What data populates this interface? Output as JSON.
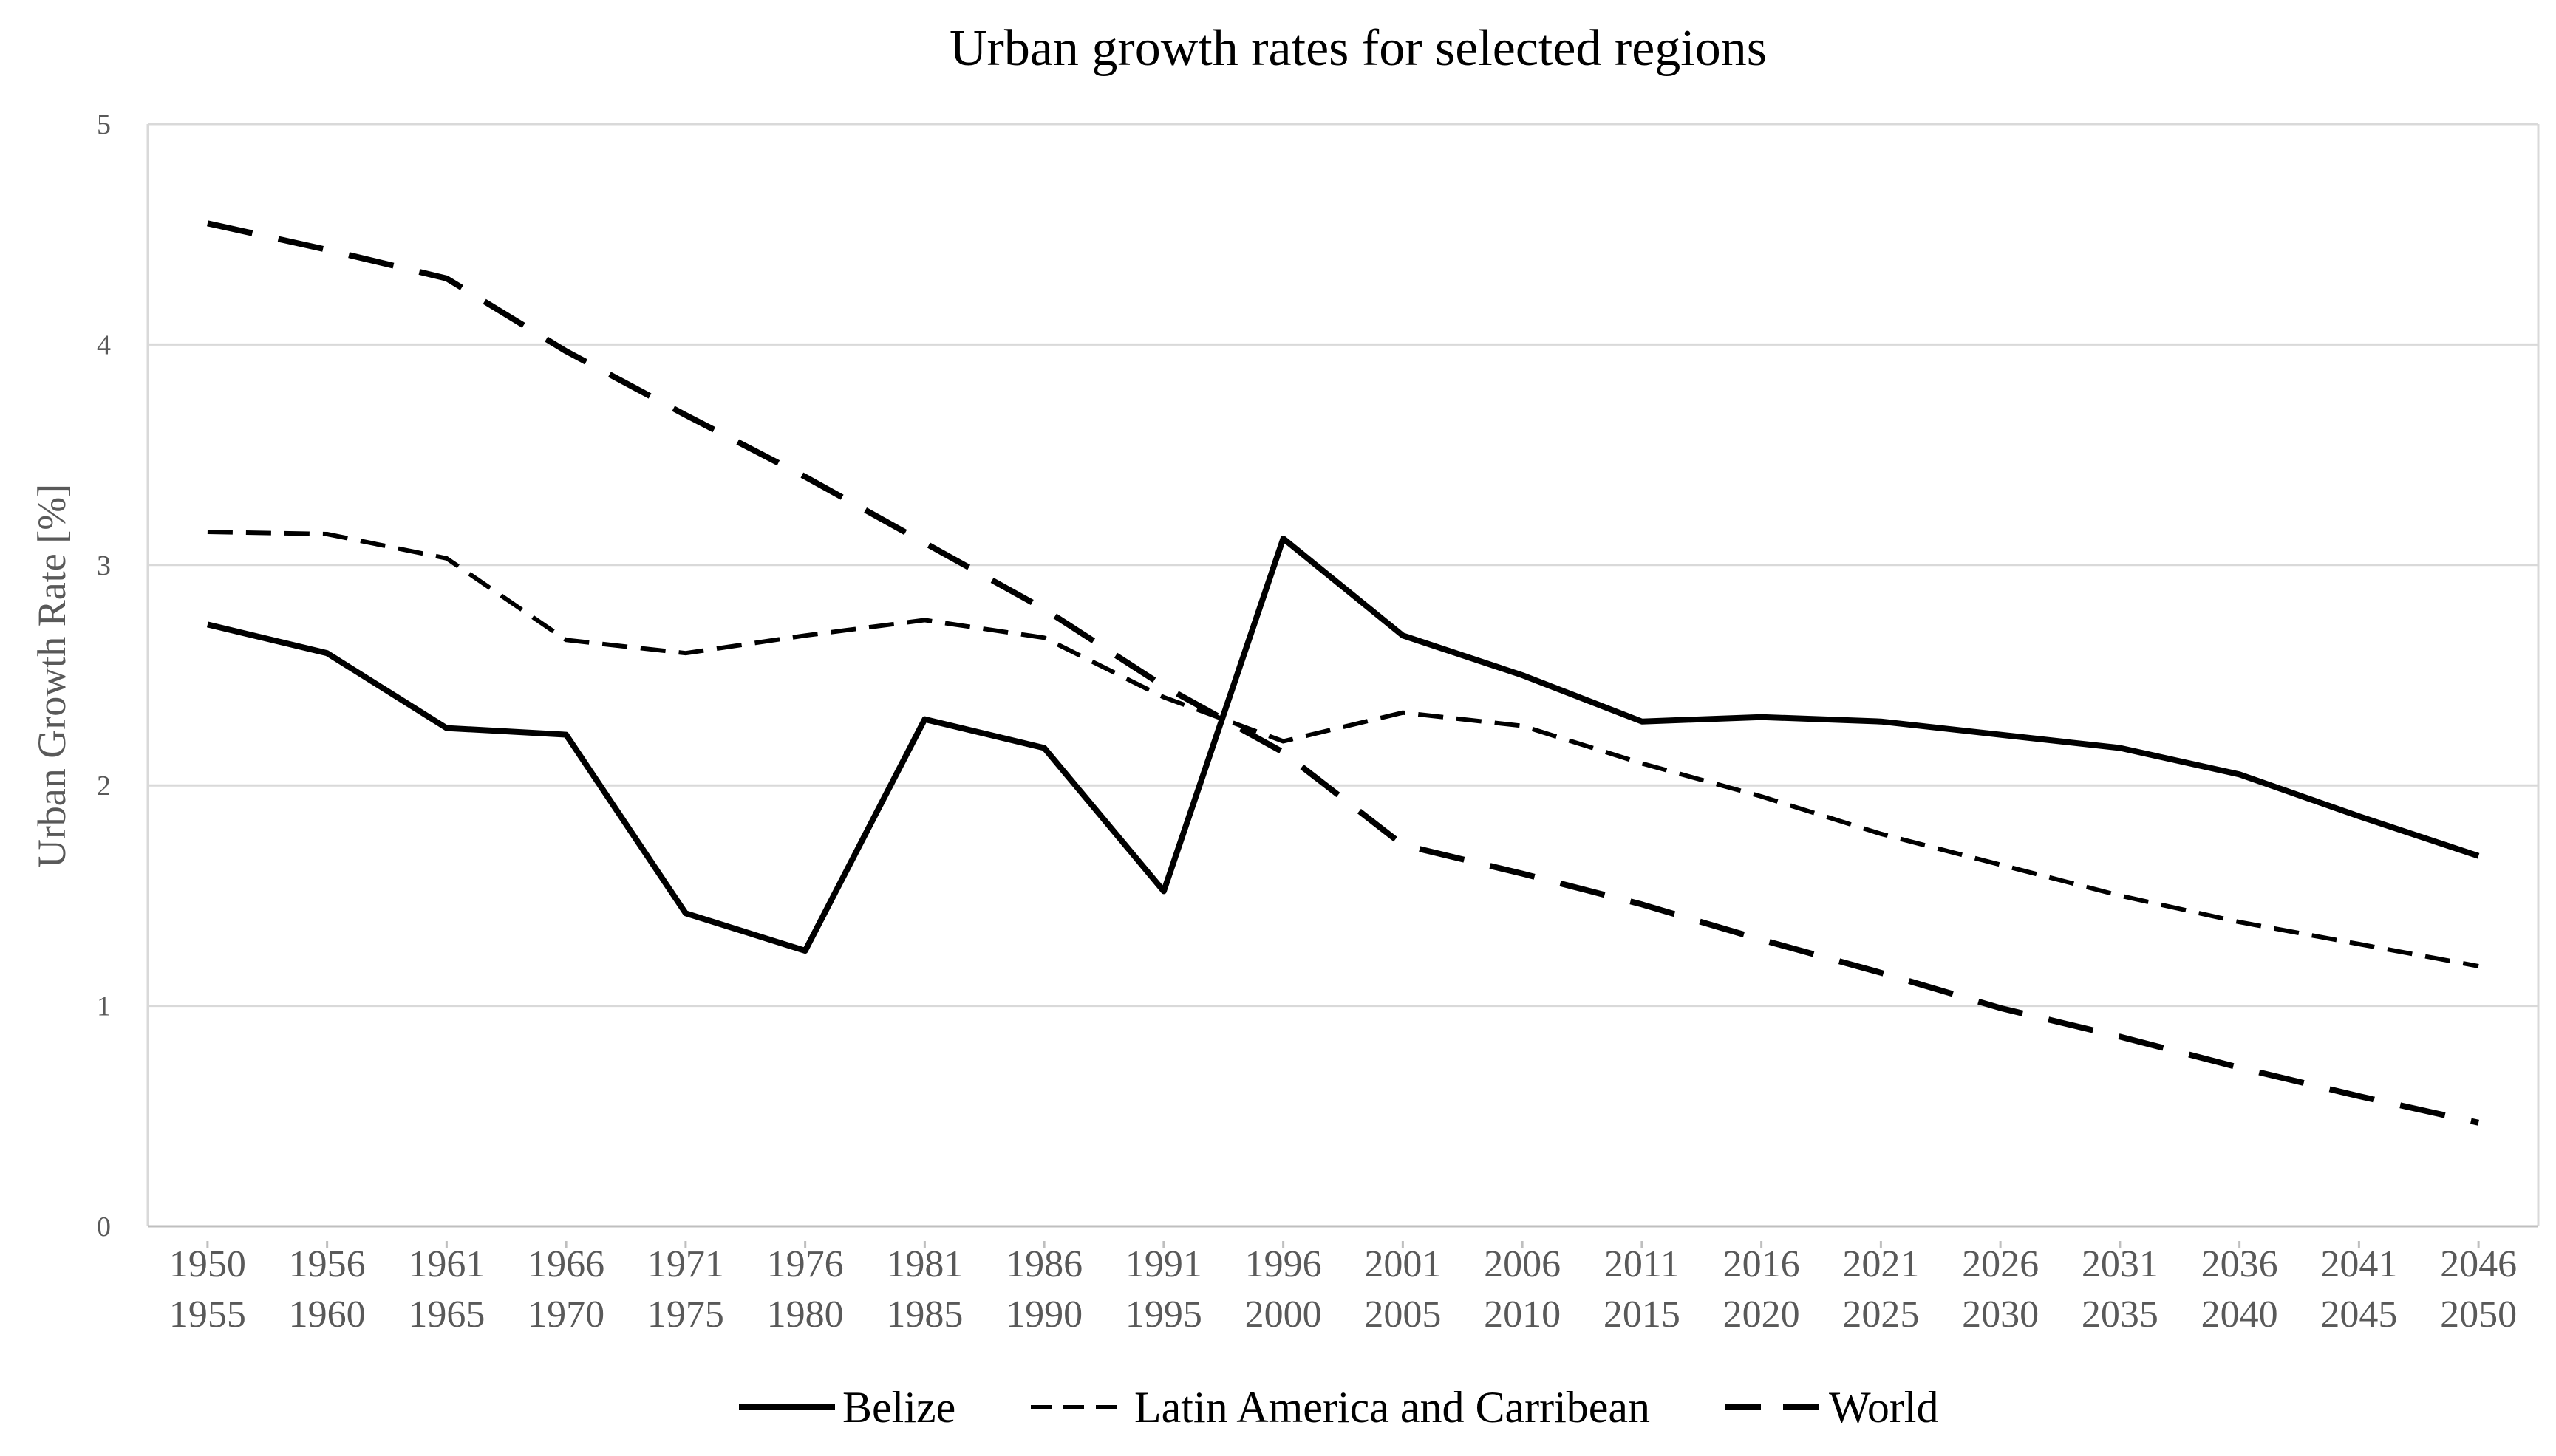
{
  "chart_data": {
    "type": "line",
    "title": "Urban growth rates for selected regions",
    "xlabel": "",
    "ylabel": "Urban Growth Rate [%]",
    "ylim": [
      0,
      5
    ],
    "yticks": [
      0,
      1,
      2,
      3,
      4,
      5
    ],
    "grid": true,
    "legend_position": "bottom",
    "categories": [
      [
        "1950",
        "1955"
      ],
      [
        "1956",
        "1960"
      ],
      [
        "1961",
        "1965"
      ],
      [
        "1966",
        "1970"
      ],
      [
        "1971",
        "1975"
      ],
      [
        "1976",
        "1980"
      ],
      [
        "1981",
        "1985"
      ],
      [
        "1986",
        "1990"
      ],
      [
        "1991",
        "1995"
      ],
      [
        "1996",
        "2000"
      ],
      [
        "2001",
        "2005"
      ],
      [
        "2006",
        "2010"
      ],
      [
        "2011",
        "2015"
      ],
      [
        "2016",
        "2020"
      ],
      [
        "2021",
        "2025"
      ],
      [
        "2026",
        "2030"
      ],
      [
        "2031",
        "2035"
      ],
      [
        "2036",
        "2040"
      ],
      [
        "2041",
        "2045"
      ],
      [
        "2046",
        "2050"
      ]
    ],
    "series": [
      {
        "name": "Belize",
        "line_style": "solid",
        "color": "#000000",
        "values": [
          2.73,
          2.6,
          2.26,
          2.23,
          1.42,
          1.25,
          2.3,
          2.17,
          1.52,
          3.12,
          2.68,
          2.5,
          2.29,
          2.31,
          2.29,
          2.23,
          2.17,
          2.05,
          1.86,
          1.68
        ]
      },
      {
        "name": "Latin America and Carribean",
        "line_style": "short-dash",
        "color": "#000000",
        "values": [
          3.15,
          3.14,
          3.03,
          2.66,
          2.6,
          2.68,
          2.75,
          2.67,
          2.4,
          2.2,
          2.33,
          2.27,
          2.1,
          1.95,
          1.78,
          1.64,
          1.5,
          1.38,
          1.28,
          1.18
        ]
      },
      {
        "name": "World",
        "line_style": "long-dash",
        "color": "#000000",
        "values": [
          4.55,
          4.43,
          4.3,
          3.97,
          3.68,
          3.4,
          3.1,
          2.8,
          2.45,
          2.15,
          1.73,
          1.6,
          1.46,
          1.3,
          1.15,
          0.99,
          0.86,
          0.72,
          0.59,
          0.47
        ]
      }
    ]
  }
}
